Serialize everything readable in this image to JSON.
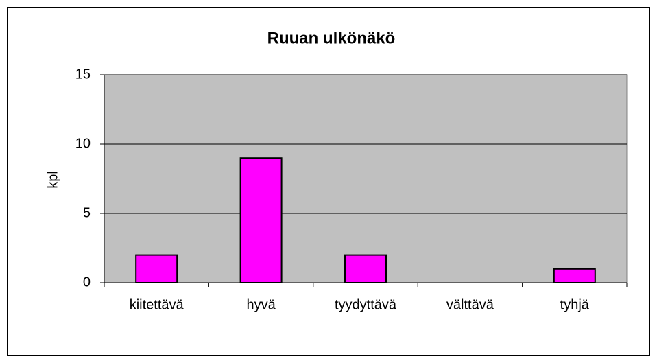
{
  "chart_data": {
    "type": "bar",
    "title": "Ruuan ulkönäkö",
    "y_label": "kpl",
    "categories": [
      "kiitettävä",
      "hyvä",
      "tyydyttävä",
      "välttävä",
      "tyhjä"
    ],
    "values": [
      2,
      9,
      2,
      0,
      1
    ],
    "color": "#ff00ff",
    "ylim": [
      0,
      15
    ],
    "yticks": [
      0,
      5,
      10,
      15
    ],
    "grid": true
  }
}
